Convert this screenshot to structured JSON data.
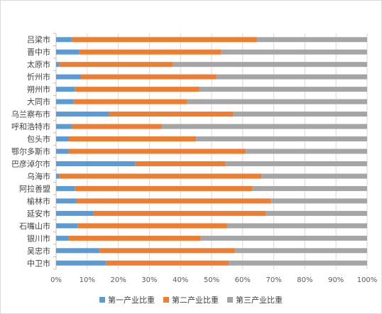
{
  "chart_data": {
    "type": "bar",
    "orientation": "horizontal",
    "stacked": "percent",
    "title": "",
    "xlabel": "",
    "ylabel": "",
    "xlim": [
      0,
      100
    ],
    "x_ticks": [
      "0%",
      "10%",
      "20%",
      "30%",
      "40%",
      "50%",
      "60%",
      "70%",
      "80%",
      "90%",
      "100%"
    ],
    "grid": true,
    "legend_position": "bottom",
    "categories": [
      "吕梁市",
      "晋中市",
      "太原市",
      "忻州市",
      "朔州市",
      "大同市",
      "乌兰察布市",
      "呼和浩特市",
      "包头市",
      "鄂尔多斯市",
      "巴彦淖尔市",
      "乌海市",
      "阿拉善盟",
      "榆林市",
      "延安市",
      "石嘴山市",
      "银川市",
      "吴忠市",
      "中卫市"
    ],
    "series": [
      {
        "name": "第一产业比重",
        "color": "#5b9bd5",
        "values": [
          5,
          7.5,
          1,
          8,
          6,
          5.5,
          17,
          5,
          4,
          4,
          25.5,
          1,
          6,
          6.5,
          12,
          7,
          4,
          14,
          16
        ]
      },
      {
        "name": "第二产业比重",
        "color": "#ed7d31",
        "values": [
          59.5,
          45.5,
          36.5,
          43.5,
          40,
          36.5,
          40,
          29,
          41,
          57,
          29,
          65,
          57,
          62.5,
          55.5,
          48,
          42.5,
          43.5,
          39.5
        ]
      },
      {
        "name": "第三产业比重",
        "color": "#a5a5a5",
        "values": [
          35.5,
          47,
          62.5,
          48.5,
          54,
          58,
          43,
          66,
          55,
          39,
          45.5,
          34,
          37,
          31,
          32.5,
          45,
          53.5,
          42.5,
          44.5
        ]
      }
    ]
  }
}
